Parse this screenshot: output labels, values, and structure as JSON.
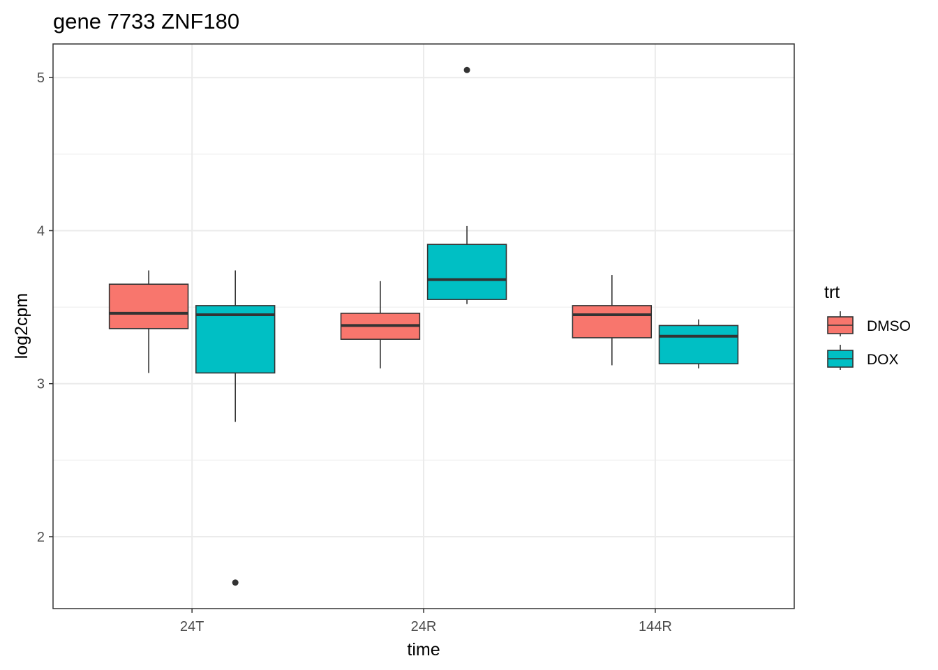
{
  "chart_data": {
    "type": "box",
    "title": "gene 7733 ZNF180",
    "xlabel": "time",
    "ylabel": "log2cpm",
    "categories": [
      "24T",
      "24R",
      "144R"
    ],
    "ylim": [
      1.53,
      5.22
    ],
    "yticks": [
      2,
      3,
      4,
      5
    ],
    "grid": true,
    "legend": {
      "title": "trt",
      "position": "right",
      "entries": [
        "DMSO",
        "DOX"
      ]
    },
    "series": [
      {
        "name": "DMSO",
        "color": "#F8766D",
        "boxes": [
          {
            "category": "24T",
            "whisker_low": 3.07,
            "q1": 3.36,
            "median": 3.46,
            "q3": 3.65,
            "whisker_high": 3.74,
            "outliers": []
          },
          {
            "category": "24R",
            "whisker_low": 3.1,
            "q1": 3.29,
            "median": 3.38,
            "q3": 3.46,
            "whisker_high": 3.67,
            "outliers": []
          },
          {
            "category": "144R",
            "whisker_low": 3.12,
            "q1": 3.3,
            "median": 3.45,
            "q3": 3.51,
            "whisker_high": 3.71,
            "outliers": []
          }
        ]
      },
      {
        "name": "DOX",
        "color": "#00BFC4",
        "boxes": [
          {
            "category": "24T",
            "whisker_low": 2.75,
            "q1": 3.07,
            "median": 3.45,
            "q3": 3.51,
            "whisker_high": 3.74,
            "outliers": [
              1.7
            ]
          },
          {
            "category": "24R",
            "whisker_low": 3.52,
            "q1": 3.55,
            "median": 3.68,
            "q3": 3.91,
            "whisker_high": 4.03,
            "outliers": [
              5.05
            ]
          },
          {
            "category": "144R",
            "whisker_low": 3.1,
            "q1": 3.13,
            "median": 3.31,
            "q3": 3.38,
            "whisker_high": 3.42,
            "outliers": []
          }
        ]
      }
    ]
  }
}
